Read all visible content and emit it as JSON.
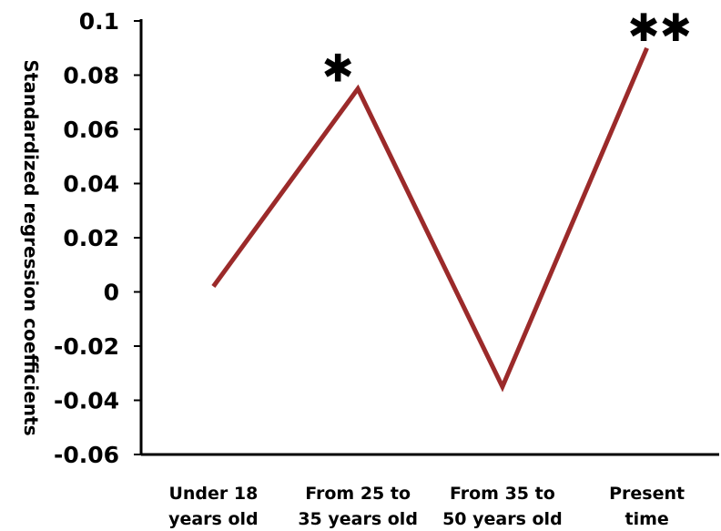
{
  "chart_data": {
    "type": "line",
    "ylabel": "Standardized regression coefficients",
    "xlabel": "",
    "title": "",
    "categories": [
      [
        "Under 18",
        "years old"
      ],
      [
        "From 25 to",
        "35 years old"
      ],
      [
        "From 35 to",
        "50 years old"
      ],
      [
        "Present",
        "time"
      ]
    ],
    "series": [
      {
        "values": [
          0.002,
          0.075,
          -0.035,
          0.09
        ]
      }
    ],
    "ylim": [
      -0.06,
      0.1
    ],
    "yticks": [
      "0.1",
      "0.08",
      "0.06",
      "0.04",
      "0.02",
      "0",
      "-0.02",
      "-0.04",
      "-0.06"
    ],
    "ytick_values": [
      0.1,
      0.08,
      0.06,
      0.04,
      0.02,
      0,
      -0.02,
      -0.04,
      -0.06
    ],
    "annotations": [
      {
        "category_index": 1,
        "text": "✱"
      },
      {
        "category_index": 3,
        "text": "✱✱"
      }
    ],
    "grid": false,
    "colors": {
      "line": "#9b2a2a",
      "axis": "#000000"
    }
  }
}
